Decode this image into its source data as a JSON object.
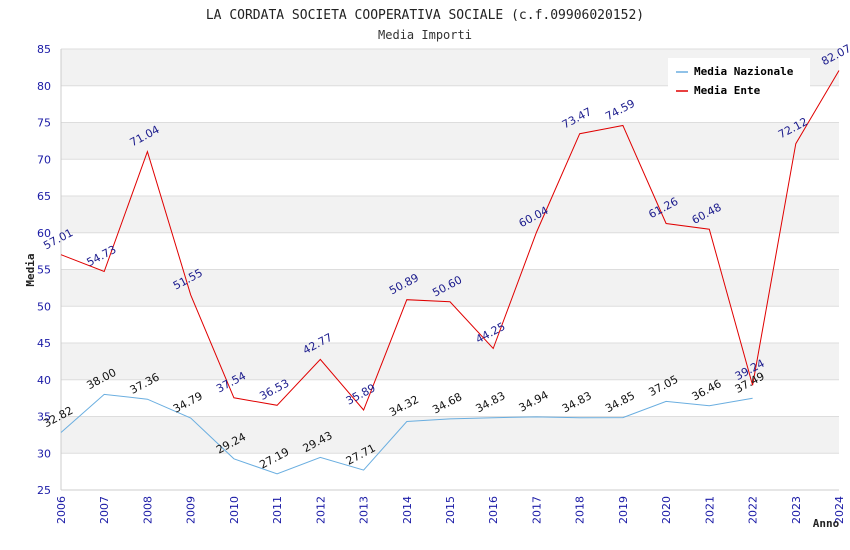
{
  "chart_data": {
    "type": "line",
    "title": "LA CORDATA SOCIETA COOPERATIVA SOCIALE (c.f.09906020152)",
    "subtitle": "Media Importi",
    "xlabel": "Anno",
    "ylabel": "Media",
    "ylim": [
      25,
      85
    ],
    "yticks": [
      25,
      30,
      35,
      40,
      45,
      50,
      55,
      60,
      65,
      70,
      75,
      80,
      85
    ],
    "grid": true,
    "legend_position": "top-right",
    "categories": [
      "2006",
      "2007",
      "2008",
      "2009",
      "2010",
      "2011",
      "2012",
      "2013",
      "2014",
      "2015",
      "2016",
      "2017",
      "2018",
      "2019",
      "2020",
      "2021",
      "2022",
      "2023",
      "2024"
    ],
    "series": [
      {
        "name": "Media Nazionale",
        "color": "#6aaee0",
        "label_color": "#111111",
        "values": [
          32.82,
          38.0,
          37.36,
          34.79,
          29.24,
          27.19,
          29.43,
          27.71,
          34.32,
          34.68,
          34.83,
          34.94,
          34.83,
          34.85,
          37.05,
          36.46,
          37.49,
          null,
          null
        ],
        "labels": [
          "32.82",
          "38.00",
          "37.36",
          "34.79",
          "29.24",
          "27.19",
          "29.43",
          "27.71",
          "34.32",
          "34.68",
          "34.83",
          "34.94",
          "34.83",
          "34.85",
          "37.05",
          "36.46",
          "37.49",
          null,
          null
        ]
      },
      {
        "name": "Media Ente",
        "color": "#e00000",
        "label_color": "#1a1a8c",
        "values": [
          57.01,
          54.73,
          71.04,
          51.55,
          37.54,
          36.53,
          42.77,
          35.89,
          50.89,
          50.6,
          44.25,
          60.04,
          73.47,
          74.59,
          61.26,
          60.48,
          39.24,
          72.12,
          82.07
        ],
        "labels": [
          "57.01",
          "54.73",
          "71.04",
          "51.55",
          "37.54",
          "36.53",
          "42.77",
          "35.89",
          "50.89",
          "50.60",
          "44.25",
          "60.04",
          "73.47",
          "74.59",
          "61.26",
          "60.48",
          "39.24",
          "72.12",
          "82.07"
        ]
      }
    ]
  }
}
